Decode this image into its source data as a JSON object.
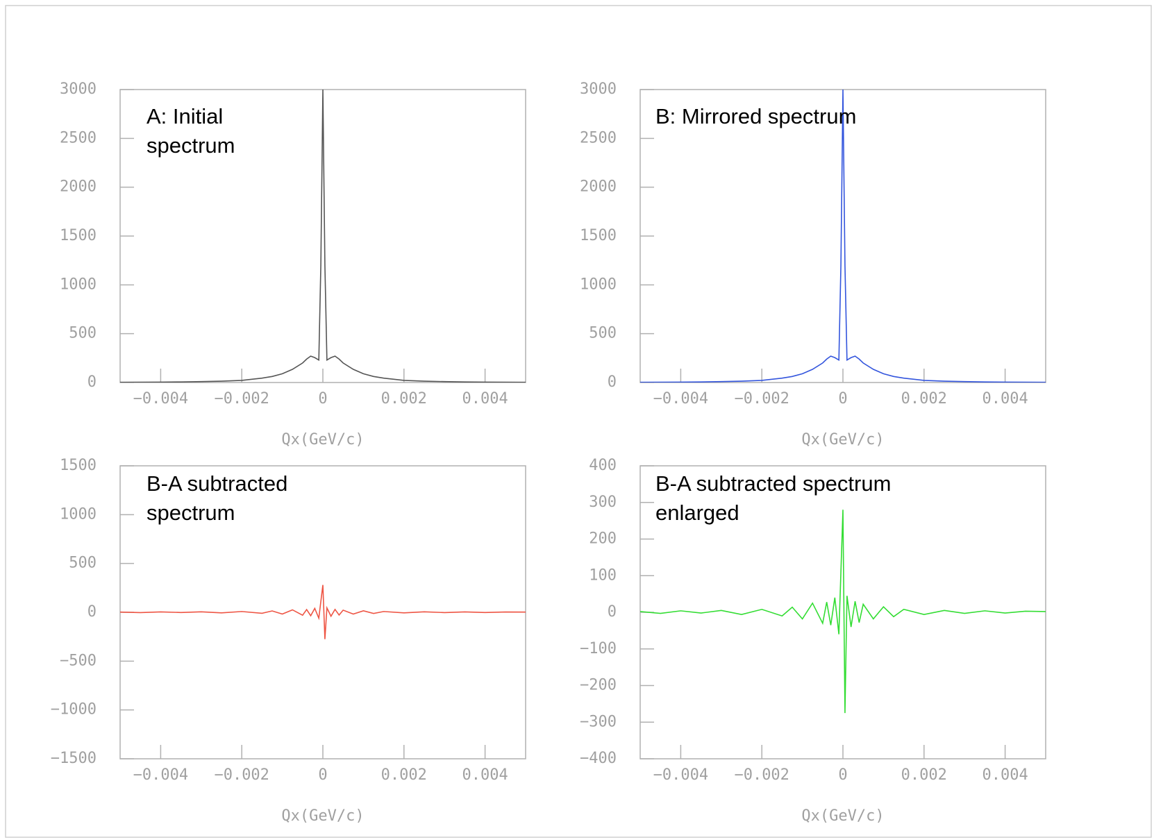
{
  "chart_data": [
    {
      "type": "line",
      "annotation": [
        "A: Initial",
        "spectrum"
      ],
      "x_label": "Qx(GeV/c)",
      "color": "#555555",
      "x": [
        -0.005,
        -0.0045,
        -0.004,
        -0.0035,
        -0.003,
        -0.0025,
        -0.002,
        -0.0015,
        -0.00125,
        -0.001,
        -0.00075,
        -0.0005,
        -0.0004,
        -0.0003,
        -0.0002,
        -0.0001,
        -5e-05,
        0,
        5e-05,
        0.0001,
        0.0002,
        0.0003,
        0.0004,
        0.0005,
        0.00075,
        0.001,
        0.00125,
        0.0015,
        0.002,
        0.0025,
        0.003,
        0.0035,
        0.004,
        0.0045,
        0.005
      ],
      "values": [
        2,
        3,
        4,
        6,
        9,
        14,
        22,
        45,
        62,
        90,
        135,
        200,
        240,
        270,
        255,
        230,
        1200,
        3000,
        1200,
        230,
        255,
        270,
        240,
        200,
        135,
        90,
        62,
        45,
        22,
        14,
        9,
        6,
        4,
        3,
        2
      ],
      "xlim": [
        -0.005,
        0.005
      ],
      "xticks": [
        {
          "value": -0.004,
          "label": "−0.004"
        },
        {
          "value": -0.002,
          "label": "−0.002"
        },
        0,
        0.002,
        0.004
      ],
      "ylim": [
        0,
        3000
      ],
      "yticks": [
        0,
        500,
        1000,
        1500,
        2000,
        2500,
        3000
      ]
    },
    {
      "type": "line",
      "annotation": [
        "B: Mirrored spectrum"
      ],
      "x_label": "Qx(GeV/c)",
      "color": "#3355dd",
      "x": [
        -0.005,
        -0.0045,
        -0.004,
        -0.0035,
        -0.003,
        -0.0025,
        -0.002,
        -0.0015,
        -0.00125,
        -0.001,
        -0.00075,
        -0.0005,
        -0.0004,
        -0.0003,
        -0.0002,
        -0.0001,
        -5e-05,
        0,
        5e-05,
        0.0001,
        0.0002,
        0.0003,
        0.0004,
        0.0005,
        0.00075,
        0.001,
        0.00125,
        0.0015,
        0.002,
        0.0025,
        0.003,
        0.0035,
        0.004,
        0.0045,
        0.005
      ],
      "values": [
        2,
        3,
        4,
        6,
        9,
        14,
        22,
        45,
        62,
        90,
        135,
        200,
        240,
        270,
        255,
        230,
        1200,
        3000,
        1200,
        230,
        255,
        270,
        240,
        200,
        135,
        90,
        62,
        45,
        22,
        14,
        9,
        6,
        4,
        3,
        2
      ],
      "xlim": [
        -0.005,
        0.005
      ],
      "xticks": [
        {
          "value": -0.004,
          "label": "−0.004"
        },
        {
          "value": -0.002,
          "label": "−0.002"
        },
        0,
        0.002,
        0.004
      ],
      "ylim": [
        0,
        3000
      ],
      "yticks": [
        0,
        500,
        1000,
        1500,
        2000,
        2500,
        3000
      ]
    },
    {
      "type": "line",
      "annotation": [
        "B-A subtracted",
        "spectrum"
      ],
      "x_label": "Qx(GeV/c)",
      "color": "#ee5544",
      "x": [
        -0.005,
        -0.0045,
        -0.004,
        -0.0035,
        -0.003,
        -0.0025,
        -0.002,
        -0.0015,
        -0.00125,
        -0.001,
        -0.00075,
        -0.0005,
        -0.0004,
        -0.0003,
        -0.0002,
        -0.0001,
        -5e-05,
        0,
        5e-05,
        0.0001,
        0.0002,
        0.0003,
        0.0004,
        0.0005,
        0.00075,
        0.001,
        0.00125,
        0.0015,
        0.002,
        0.0025,
        0.003,
        0.0035,
        0.004,
        0.0045,
        0.005
      ],
      "values": [
        2,
        -3,
        4,
        -2,
        5,
        -6,
        8,
        -10,
        14,
        -18,
        25,
        -30,
        28,
        -35,
        40,
        -60,
        110,
        280,
        -275,
        45,
        -40,
        30,
        -28,
        22,
        -18,
        15,
        -12,
        8,
        -6,
        5,
        -3,
        4,
        -2,
        3,
        2
      ],
      "xlim": [
        -0.005,
        0.005
      ],
      "xticks": [
        {
          "value": -0.004,
          "label": "−0.004"
        },
        {
          "value": -0.002,
          "label": "−0.002"
        },
        0,
        0.002,
        0.004
      ],
      "ylim": [
        -1500,
        1500
      ],
      "yticks": [
        {
          "value": -1500,
          "label": "−1500"
        },
        {
          "value": -1000,
          "label": "−1000"
        },
        {
          "value": -500,
          "label": "−500"
        },
        0,
        500,
        1000,
        1500
      ]
    },
    {
      "type": "line",
      "annotation": [
        "B-A subtracted spectrum",
        "enlarged"
      ],
      "x_label": "Qx(GeV/c)",
      "color": "#33dd33",
      "x": [
        -0.005,
        -0.0045,
        -0.004,
        -0.0035,
        -0.003,
        -0.0025,
        -0.002,
        -0.0015,
        -0.00125,
        -0.001,
        -0.00075,
        -0.0005,
        -0.0004,
        -0.0003,
        -0.0002,
        -0.0001,
        -5e-05,
        0,
        5e-05,
        0.0001,
        0.0002,
        0.0003,
        0.0004,
        0.0005,
        0.00075,
        0.001,
        0.00125,
        0.0015,
        0.002,
        0.0025,
        0.003,
        0.0035,
        0.004,
        0.0045,
        0.005
      ],
      "values": [
        2,
        -3,
        4,
        -2,
        5,
        -6,
        8,
        -10,
        14,
        -18,
        25,
        -30,
        28,
        -35,
        40,
        -60,
        110,
        280,
        -275,
        45,
        -40,
        30,
        -28,
        22,
        -18,
        15,
        -12,
        8,
        -6,
        5,
        -3,
        4,
        -2,
        3,
        2
      ],
      "xlim": [
        -0.005,
        0.005
      ],
      "xticks": [
        {
          "value": -0.004,
          "label": "−0.004"
        },
        {
          "value": -0.002,
          "label": "−0.002"
        },
        0,
        0.002,
        0.004
      ],
      "ylim": [
        -400,
        400
      ],
      "yticks": [
        {
          "value": -400,
          "label": "−400"
        },
        {
          "value": -300,
          "label": "−300"
        },
        {
          "value": -200,
          "label": "−200"
        },
        {
          "value": -100,
          "label": "−100"
        },
        0,
        100,
        200,
        300,
        400
      ]
    }
  ]
}
